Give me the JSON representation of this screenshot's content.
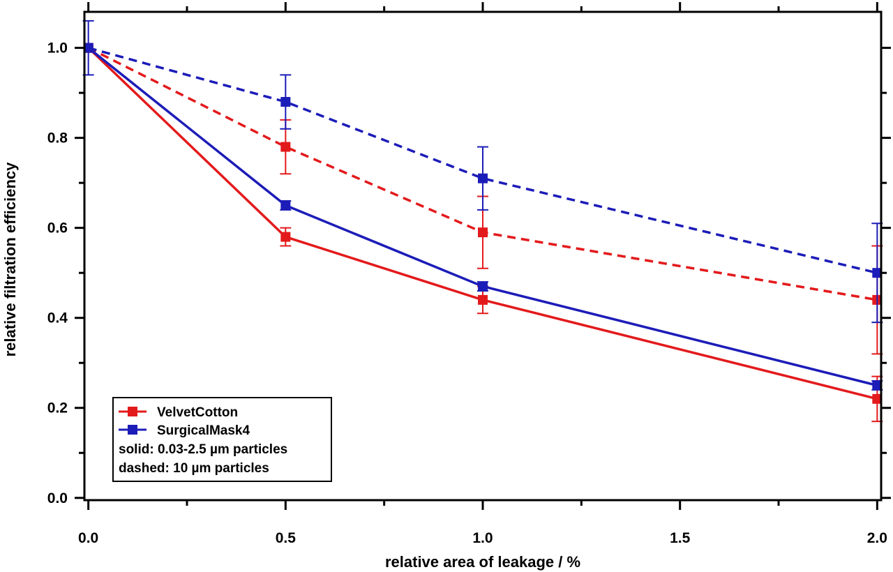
{
  "chart_data": {
    "type": "line",
    "xlabel": "relative area of leakage / %",
    "ylabel": "relative filtration efficiency",
    "xlim": [
      -0.01,
      2.01
    ],
    "ylim": [
      -0.005,
      1.08
    ],
    "x_ticks": [
      0.0,
      0.5,
      1.0,
      1.5,
      2.0
    ],
    "x_tick_labels": [
      "0.0",
      "0.5",
      "1.0",
      "1.5",
      "2.0"
    ],
    "y_ticks": [
      0.0,
      0.2,
      0.4,
      0.6,
      0.8,
      1.0
    ],
    "y_tick_labels": [
      "0.0",
      "0.2",
      "0.4",
      "0.6",
      "0.8",
      "1.0"
    ],
    "grid": false,
    "legend_position": "bottom-left",
    "series": [
      {
        "name": "VelvetCotton",
        "style": "solid",
        "color": "#e31a1c",
        "x": [
          0.0,
          0.5,
          1.0,
          2.0
        ],
        "y": [
          1.0,
          0.58,
          0.44,
          0.22
        ],
        "err": [
          0.0,
          0.02,
          0.03,
          0.05
        ]
      },
      {
        "name": "SurgicalMask4",
        "style": "solid",
        "color": "#1c1cb8",
        "x": [
          0.0,
          0.5,
          1.0,
          2.0
        ],
        "y": [
          1.0,
          0.65,
          0.47,
          0.25
        ],
        "err": [
          0.06,
          0.01,
          0.01,
          0.01
        ]
      },
      {
        "name": "VelvetCotton",
        "style": "dashed",
        "color": "#e31a1c",
        "x": [
          0.0,
          0.5,
          1.0,
          2.0
        ],
        "y": [
          1.0,
          0.78,
          0.59,
          0.44
        ],
        "err": [
          0.0,
          0.06,
          0.08,
          0.12
        ]
      },
      {
        "name": "SurgicalMask4",
        "style": "dashed",
        "color": "#1c1cb8",
        "x": [
          0.0,
          0.5,
          1.0,
          2.0
        ],
        "y": [
          1.0,
          0.88,
          0.71,
          0.5
        ],
        "err": [
          0.0,
          0.06,
          0.07,
          0.11
        ]
      }
    ],
    "legend": {
      "entries": [
        {
          "label": "VelvetCotton",
          "color": "#e31a1c"
        },
        {
          "label": "SurgicalMask4",
          "color": "#1c1cb8"
        }
      ],
      "notes": [
        "solid: 0.03-2.5 µm particles",
        "dashed: 10 µm particles"
      ]
    }
  }
}
